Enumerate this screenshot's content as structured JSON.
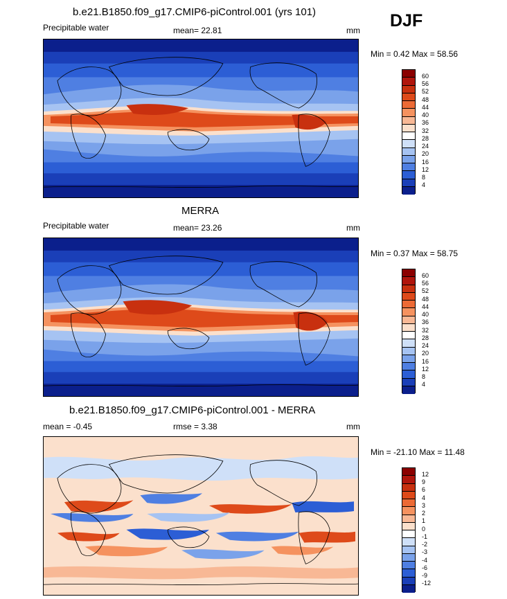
{
  "season": "DJF",
  "panels": [
    {
      "title": "b.e21.B1850.f09_g17.CMIP6-piControl.001 (yrs 101)",
      "left_label": "Precipitable water",
      "center_label": "mean=  22.81",
      "units": "mm",
      "minmax": "Min =   0.42 Max =  58.56"
    },
    {
      "title": "MERRA",
      "left_label": "Precipitable water",
      "center_label": "mean=  23.26",
      "units": "mm",
      "minmax": "Min =   0.37 Max =  58.75"
    },
    {
      "title": "b.e21.B1850.f09_g17.CMIP6-piControl.001 - MERRA",
      "left_label": "mean =  -0.45",
      "center_label": "rmse =   3.38",
      "units": "mm",
      "minmax": "Min = -21.10 Max =  11.48"
    }
  ],
  "chart_data": [
    {
      "type": "heatmap",
      "title": "b.e21.B1850.f09_g17.CMIP6-piControl.001 (yrs 101)",
      "variable": "Precipitable water",
      "units": "mm",
      "mean": 22.81,
      "min": 0.42,
      "max": 58.56,
      "colorbar_levels": [
        60,
        56,
        52,
        48,
        44,
        40,
        36,
        32,
        28,
        24,
        20,
        16,
        12,
        8,
        4
      ],
      "colorbar_colors": [
        "#8b0000",
        "#b0150c",
        "#c8300f",
        "#de4a1a",
        "#ec6a35",
        "#f5925f",
        "#f8b895",
        "#fbe0cc",
        "#ffffff",
        "#cfe0f8",
        "#a6c3f2",
        "#7aa2ea",
        "#4f7fe2",
        "#2c5ed5",
        "#1a3fb8",
        "#0b1f8c"
      ]
    },
    {
      "type": "heatmap",
      "title": "MERRA",
      "variable": "Precipitable water",
      "units": "mm",
      "mean": 23.26,
      "min": 0.37,
      "max": 58.75,
      "colorbar_levels": [
        60,
        56,
        52,
        48,
        44,
        40,
        36,
        32,
        28,
        24,
        20,
        16,
        12,
        8,
        4
      ],
      "colorbar_colors": [
        "#8b0000",
        "#b0150c",
        "#c8300f",
        "#de4a1a",
        "#ec6a35",
        "#f5925f",
        "#f8b895",
        "#fbe0cc",
        "#ffffff",
        "#cfe0f8",
        "#a6c3f2",
        "#7aa2ea",
        "#4f7fe2",
        "#2c5ed5",
        "#1a3fb8",
        "#0b1f8c"
      ]
    },
    {
      "type": "heatmap",
      "title": "b.e21.B1850.f09_g17.CMIP6-piControl.001 - MERRA",
      "units": "mm",
      "mean": -0.45,
      "rmse": 3.38,
      "min": -21.1,
      "max": 11.48,
      "colorbar_levels": [
        12,
        9,
        6,
        4,
        3,
        2,
        1,
        0,
        -1,
        -2,
        -3,
        -4,
        -6,
        -9,
        -12
      ],
      "colorbar_colors": [
        "#8b0000",
        "#b0150c",
        "#c8300f",
        "#de4a1a",
        "#ec6a35",
        "#f5925f",
        "#f8b895",
        "#fbe0cc",
        "#ffffff",
        "#cfe0f8",
        "#a6c3f2",
        "#7aa2ea",
        "#4f7fe2",
        "#2c5ed5",
        "#1a3fb8",
        "#0b1f8c"
      ]
    }
  ]
}
